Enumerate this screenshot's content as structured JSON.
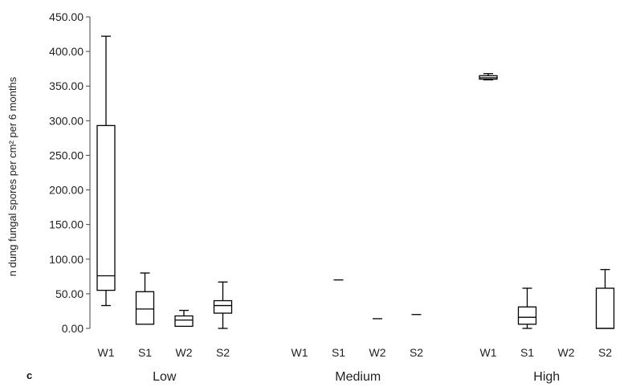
{
  "chart_data": {
    "type": "box",
    "panel_label": "c",
    "ylabel": "n dung fungal spores per cm² per 6 months",
    "ylim": [
      0,
      450
    ],
    "yticks": [
      0,
      50,
      100,
      150,
      200,
      250,
      300,
      350,
      400,
      450
    ],
    "ytick_labels": [
      "0.00",
      "50.00",
      "100.00",
      "150.00",
      "200.00",
      "250.00",
      "300.00",
      "350.00",
      "400.00",
      "450.00"
    ],
    "groups": [
      {
        "name": "Low",
        "boxes": [
          {
            "label": "W1",
            "min": 33,
            "q1": 55,
            "median": 76,
            "q3": 293,
            "max": 422
          },
          {
            "label": "S1",
            "min": 6,
            "q1": 6,
            "median": 28,
            "q3": 53,
            "max": 80
          },
          {
            "label": "W2",
            "min": 3,
            "q1": 3,
            "median": 12,
            "q3": 18,
            "max": 26
          },
          {
            "label": "S2",
            "min": 0,
            "q1": 22,
            "median": 33,
            "q3": 40,
            "max": 67
          }
        ]
      },
      {
        "name": "Medium",
        "boxes": [
          {
            "label": "W1",
            "min": null,
            "q1": null,
            "median": null,
            "q3": null,
            "max": null
          },
          {
            "label": "S1",
            "min": 70,
            "q1": 70,
            "median": 70,
            "q3": 70,
            "max": 70
          },
          {
            "label": "W2",
            "min": 14,
            "q1": 14,
            "median": 14,
            "q3": 14,
            "max": 14
          },
          {
            "label": "S2",
            "min": 20,
            "q1": 20,
            "median": 20,
            "q3": 20,
            "max": 20
          }
        ]
      },
      {
        "name": "High",
        "boxes": [
          {
            "label": "W1",
            "min": 359,
            "q1": 360,
            "median": 362,
            "q3": 365,
            "max": 368
          },
          {
            "label": "S1",
            "min": 0,
            "q1": 6,
            "median": 16,
            "q3": 31,
            "max": 58
          },
          {
            "label": "W2",
            "min": null,
            "q1": null,
            "median": null,
            "q3": null,
            "max": null
          },
          {
            "label": "S2",
            "min": 0,
            "q1": 0,
            "median": 0,
            "q3": 58,
            "max": 85
          }
        ]
      }
    ]
  }
}
